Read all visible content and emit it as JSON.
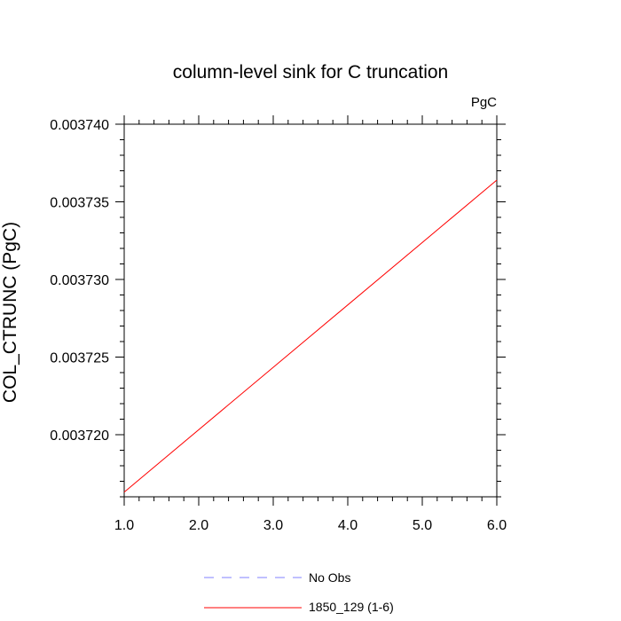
{
  "chart_data": {
    "type": "line",
    "title": "column-level sink for C truncation",
    "units_label": "PgC",
    "ylabel": "COL_CTRUNC  (PgC)",
    "xlabel": "",
    "xlim": [
      1.0,
      6.0
    ],
    "ylim": [
      0.003716,
      0.00374
    ],
    "xticks": [
      "1.0",
      "2.0",
      "3.0",
      "4.0",
      "5.0",
      "6.0"
    ],
    "yticks": [
      "0.003720",
      "0.003725",
      "0.003730",
      "0.003735",
      "0.003740"
    ],
    "series": [
      {
        "name": "No Obs",
        "color": "#8080ff",
        "dash": "dashed",
        "x": [],
        "y": []
      },
      {
        "name": "1850_129 (1-6)",
        "color": "#ff0000",
        "dash": "solid",
        "x": [
          1.0,
          6.0
        ],
        "y": [
          0.0037163,
          0.0037364
        ]
      }
    ],
    "legend_position": "bottom-center",
    "grid": false
  }
}
